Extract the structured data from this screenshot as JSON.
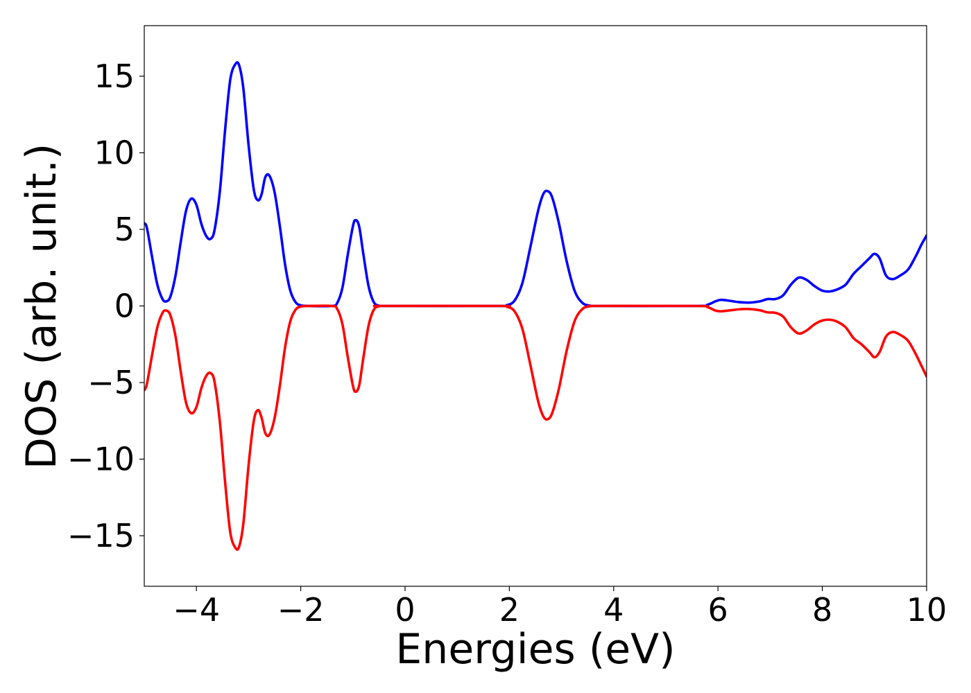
{
  "chart_data": {
    "type": "line",
    "title": "",
    "xlabel": "Energies (eV)",
    "ylabel": "DOS (arb. unit.)",
    "xlim": [
      -5,
      10
    ],
    "ylim": [
      -18.3,
      18.3
    ],
    "grid": false,
    "legend": "none",
    "x_ticks": [
      {
        "value": -4,
        "label": "−4"
      },
      {
        "value": -2,
        "label": "−2"
      },
      {
        "value": 0,
        "label": "0"
      },
      {
        "value": 2,
        "label": "2"
      },
      {
        "value": 4,
        "label": "4"
      },
      {
        "value": 6,
        "label": "6"
      },
      {
        "value": 8,
        "label": "8"
      },
      {
        "value": 10,
        "label": "10"
      }
    ],
    "y_ticks": [
      {
        "value": 15,
        "label": "15"
      },
      {
        "value": 10,
        "label": "10"
      },
      {
        "value": 5,
        "label": "5"
      },
      {
        "value": 0,
        "label": "0"
      },
      {
        "value": -5,
        "label": "−5"
      },
      {
        "value": -10,
        "label": "−10"
      },
      {
        "value": -15,
        "label": "−15"
      }
    ],
    "series": [
      {
        "color": "#0000ff",
        "points": [
          [
            -5.0,
            5.4
          ],
          [
            -4.95,
            5.1
          ],
          [
            -4.85,
            3.2
          ],
          [
            -4.75,
            1.4
          ],
          [
            -4.65,
            0.45
          ],
          [
            -4.58,
            0.3
          ],
          [
            -4.5,
            0.6
          ],
          [
            -4.4,
            2.0
          ],
          [
            -4.3,
            4.2
          ],
          [
            -4.2,
            6.2
          ],
          [
            -4.1,
            7.0
          ],
          [
            -4.0,
            6.6
          ],
          [
            -3.9,
            5.3
          ],
          [
            -3.8,
            4.5
          ],
          [
            -3.72,
            4.4
          ],
          [
            -3.65,
            5.0
          ],
          [
            -3.55,
            7.5
          ],
          [
            -3.45,
            11.5
          ],
          [
            -3.35,
            14.8
          ],
          [
            -3.25,
            15.8
          ],
          [
            -3.18,
            15.7
          ],
          [
            -3.1,
            14.2
          ],
          [
            -3.0,
            10.5
          ],
          [
            -2.9,
            7.6
          ],
          [
            -2.82,
            6.9
          ],
          [
            -2.75,
            7.3
          ],
          [
            -2.68,
            8.4
          ],
          [
            -2.6,
            8.5
          ],
          [
            -2.5,
            7.4
          ],
          [
            -2.4,
            5.2
          ],
          [
            -2.3,
            2.7
          ],
          [
            -2.2,
            1.0
          ],
          [
            -2.1,
            0.25
          ],
          [
            -2.0,
            0.04
          ],
          [
            -1.85,
            0.0
          ],
          [
            -1.4,
            0.0
          ],
          [
            -1.3,
            0.2
          ],
          [
            -1.2,
            1.2
          ],
          [
            -1.1,
            3.3
          ],
          [
            -1.0,
            5.2
          ],
          [
            -0.95,
            5.6
          ],
          [
            -0.88,
            5.2
          ],
          [
            -0.8,
            3.4
          ],
          [
            -0.7,
            1.3
          ],
          [
            -0.6,
            0.25
          ],
          [
            -0.5,
            0.02
          ],
          [
            -0.4,
            0.0
          ],
          [
            1.8,
            0.0
          ],
          [
            1.95,
            0.05
          ],
          [
            2.1,
            0.35
          ],
          [
            2.25,
            1.5
          ],
          [
            2.4,
            3.8
          ],
          [
            2.55,
            6.2
          ],
          [
            2.65,
            7.3
          ],
          [
            2.73,
            7.5
          ],
          [
            2.82,
            7.1
          ],
          [
            2.95,
            5.4
          ],
          [
            3.1,
            2.9
          ],
          [
            3.25,
            1.0
          ],
          [
            3.4,
            0.2
          ],
          [
            3.55,
            0.02
          ],
          [
            3.7,
            0.0
          ],
          [
            5.6,
            0.0
          ],
          [
            5.8,
            0.08
          ],
          [
            5.95,
            0.3
          ],
          [
            6.05,
            0.4
          ],
          [
            6.2,
            0.35
          ],
          [
            6.4,
            0.25
          ],
          [
            6.6,
            0.22
          ],
          [
            6.8,
            0.3
          ],
          [
            6.95,
            0.45
          ],
          [
            7.1,
            0.45
          ],
          [
            7.25,
            0.7
          ],
          [
            7.4,
            1.4
          ],
          [
            7.55,
            1.85
          ],
          [
            7.7,
            1.7
          ],
          [
            7.85,
            1.3
          ],
          [
            8.0,
            1.0
          ],
          [
            8.15,
            0.95
          ],
          [
            8.3,
            1.1
          ],
          [
            8.45,
            1.4
          ],
          [
            8.6,
            2.1
          ],
          [
            8.75,
            2.6
          ],
          [
            8.9,
            3.1
          ],
          [
            9.0,
            3.4
          ],
          [
            9.1,
            3.1
          ],
          [
            9.22,
            2.0
          ],
          [
            9.35,
            1.75
          ],
          [
            9.5,
            2.0
          ],
          [
            9.65,
            2.4
          ],
          [
            9.8,
            3.3
          ],
          [
            9.9,
            4.0
          ],
          [
            10.0,
            4.6
          ]
        ]
      },
      {
        "color": "#ff0000",
        "points": [
          [
            -5.0,
            -5.5
          ],
          [
            -4.95,
            -5.1
          ],
          [
            -4.85,
            -3.2
          ],
          [
            -4.75,
            -1.4
          ],
          [
            -4.65,
            -0.45
          ],
          [
            -4.58,
            -0.3
          ],
          [
            -4.5,
            -0.6
          ],
          [
            -4.4,
            -2.0
          ],
          [
            -4.3,
            -4.3
          ],
          [
            -4.2,
            -6.3
          ],
          [
            -4.1,
            -7.0
          ],
          [
            -4.0,
            -6.6
          ],
          [
            -3.9,
            -5.3
          ],
          [
            -3.8,
            -4.5
          ],
          [
            -3.72,
            -4.4
          ],
          [
            -3.65,
            -5.0
          ],
          [
            -3.55,
            -7.6
          ],
          [
            -3.45,
            -11.5
          ],
          [
            -3.35,
            -14.8
          ],
          [
            -3.25,
            -15.8
          ],
          [
            -3.18,
            -15.7
          ],
          [
            -3.1,
            -14.2
          ],
          [
            -3.0,
            -10.4
          ],
          [
            -2.9,
            -7.5
          ],
          [
            -2.82,
            -6.8
          ],
          [
            -2.75,
            -7.3
          ],
          [
            -2.68,
            -8.3
          ],
          [
            -2.6,
            -8.4
          ],
          [
            -2.5,
            -7.3
          ],
          [
            -2.4,
            -5.2
          ],
          [
            -2.3,
            -2.7
          ],
          [
            -2.2,
            -1.0
          ],
          [
            -2.1,
            -0.25
          ],
          [
            -2.0,
            -0.04
          ],
          [
            -1.85,
            0.0
          ],
          [
            -1.4,
            0.0
          ],
          [
            -1.3,
            -0.2
          ],
          [
            -1.2,
            -1.2
          ],
          [
            -1.1,
            -3.3
          ],
          [
            -1.0,
            -5.2
          ],
          [
            -0.95,
            -5.6
          ],
          [
            -0.88,
            -5.2
          ],
          [
            -0.8,
            -3.4
          ],
          [
            -0.7,
            -1.3
          ],
          [
            -0.6,
            -0.25
          ],
          [
            -0.5,
            -0.02
          ],
          [
            -0.4,
            0.0
          ],
          [
            1.8,
            0.0
          ],
          [
            1.95,
            -0.05
          ],
          [
            2.1,
            -0.35
          ],
          [
            2.25,
            -1.5
          ],
          [
            2.4,
            -3.8
          ],
          [
            2.55,
            -6.2
          ],
          [
            2.65,
            -7.2
          ],
          [
            2.73,
            -7.4
          ],
          [
            2.82,
            -7.0
          ],
          [
            2.95,
            -5.4
          ],
          [
            3.1,
            -2.9
          ],
          [
            3.25,
            -1.0
          ],
          [
            3.4,
            -0.2
          ],
          [
            3.55,
            -0.02
          ],
          [
            3.7,
            0.0
          ],
          [
            5.6,
            0.0
          ],
          [
            5.8,
            -0.08
          ],
          [
            5.95,
            -0.3
          ],
          [
            6.05,
            -0.35
          ],
          [
            6.2,
            -0.3
          ],
          [
            6.4,
            -0.22
          ],
          [
            6.6,
            -0.2
          ],
          [
            6.8,
            -0.28
          ],
          [
            6.95,
            -0.42
          ],
          [
            7.1,
            -0.45
          ],
          [
            7.25,
            -0.7
          ],
          [
            7.4,
            -1.4
          ],
          [
            7.55,
            -1.8
          ],
          [
            7.7,
            -1.6
          ],
          [
            7.85,
            -1.2
          ],
          [
            8.0,
            -0.95
          ],
          [
            8.15,
            -0.9
          ],
          [
            8.3,
            -1.05
          ],
          [
            8.45,
            -1.4
          ],
          [
            8.6,
            -2.1
          ],
          [
            8.75,
            -2.5
          ],
          [
            8.9,
            -3.0
          ],
          [
            9.0,
            -3.35
          ],
          [
            9.1,
            -3.0
          ],
          [
            9.22,
            -2.0
          ],
          [
            9.35,
            -1.7
          ],
          [
            9.5,
            -1.9
          ],
          [
            9.65,
            -2.3
          ],
          [
            9.8,
            -3.2
          ],
          [
            9.9,
            -3.9
          ],
          [
            10.0,
            -4.6
          ]
        ]
      }
    ]
  }
}
